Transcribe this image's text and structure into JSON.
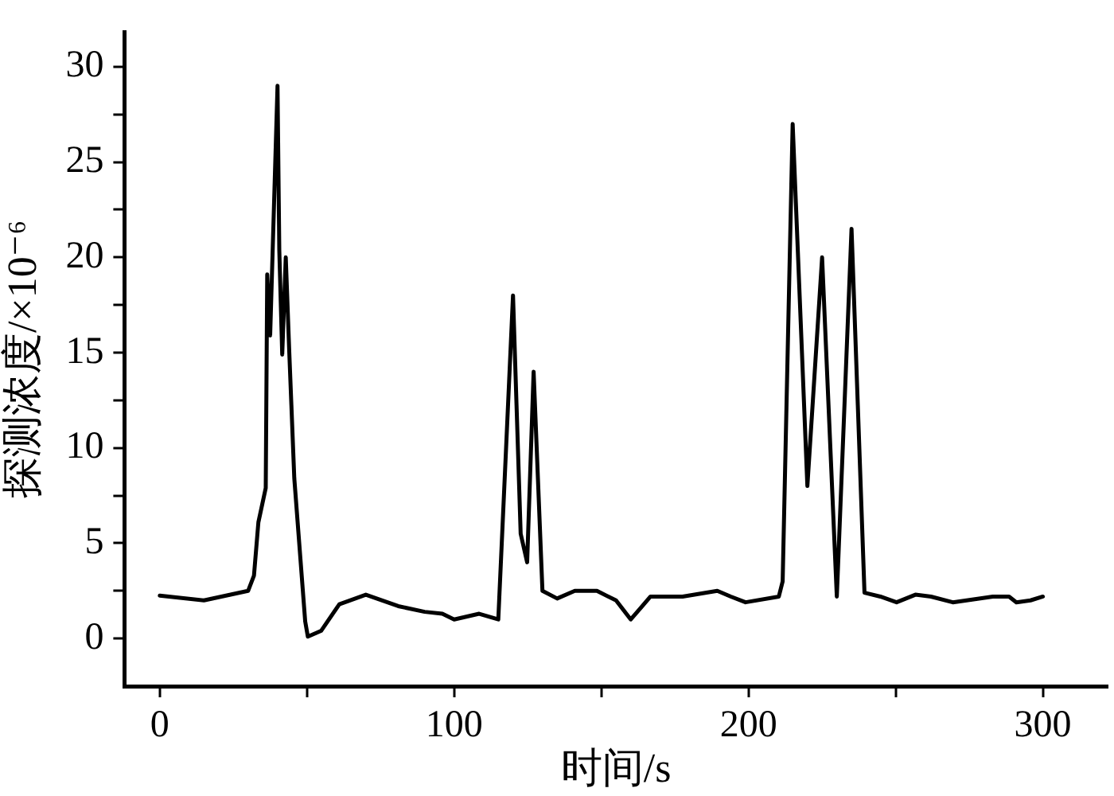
{
  "chart_data": {
    "type": "line",
    "xlabel": "时间/s",
    "ylabel": "探测浓度/×10⁻⁶",
    "xlim": [
      -12,
      322
    ],
    "ylim": [
      -2.5,
      31.8
    ],
    "xticks": [
      0,
      {
        "value": 50,
        "label": null
      },
      100,
      {
        "value": 150,
        "label": null
      },
      200,
      {
        "value": 250,
        "label": null
      },
      300
    ],
    "yticks": [
      0,
      {
        "value": 2.5,
        "label": null
      },
      5,
      {
        "value": 7.5,
        "label": null
      },
      10,
      {
        "value": 12.5,
        "label": null
      },
      15,
      {
        "value": 17.5,
        "label": null
      },
      20,
      {
        "value": 22.5,
        "label": null
      },
      25,
      {
        "value": 27.5,
        "label": null
      },
      30
    ],
    "grid": false,
    "legend": false,
    "marker": "none",
    "line_style": "solid",
    "series": [
      {
        "color": "#000000",
        "x": [
          0,
          15,
          30,
          32,
          33.5,
          36,
          36.5,
          37.5,
          40,
          40.6,
          41.6,
          42.8,
          44,
          45.7,
          49.4,
          50.3,
          54.8,
          61,
          70,
          81,
          90,
          96,
          100,
          108.5,
          115,
          120,
          122.6,
          124.8,
          127,
          130,
          135,
          141,
          148.5,
          155,
          160,
          166.7,
          177.6,
          189.4,
          194,
          199,
          210.3,
          211.6,
          215,
          220,
          225,
          230,
          235,
          239.4,
          244.8,
          250.3,
          256.7,
          262,
          269.4,
          283,
          288.5,
          291,
          295.8,
          300
        ],
        "values": [
          2.25,
          2.0,
          2.5,
          3.3,
          6.1,
          7.9,
          19.1,
          15.9,
          29,
          20.4,
          14.9,
          20,
          15,
          8.4,
          0.9,
          0.1,
          0.4,
          1.8,
          2.3,
          1.7,
          1.4,
          1.3,
          1.0,
          1.3,
          1.0,
          18.0,
          5.5,
          4.0,
          14.0,
          2.5,
          2.1,
          2.5,
          2.5,
          2.0,
          1.0,
          2.2,
          2.2,
          2.5,
          2.2,
          1.9,
          2.2,
          3.0,
          27.0,
          8.0,
          20.0,
          2.2,
          21.5,
          2.4,
          2.2,
          1.9,
          2.3,
          2.2,
          1.9,
          2.2,
          2.2,
          1.9,
          2.0,
          2.2
        ]
      }
    ]
  }
}
